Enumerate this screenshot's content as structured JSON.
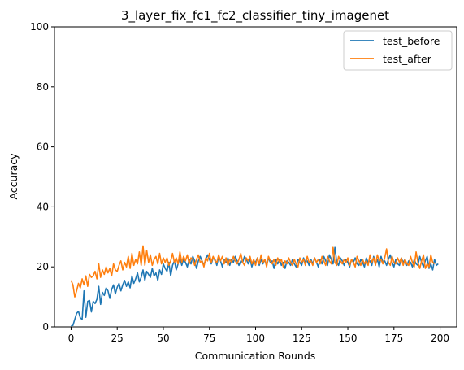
{
  "chart_data": {
    "type": "line",
    "title": "3_layer_fix_fc1_fc2_classifier_tiny_imagenet",
    "xlabel": "Communication Rounds",
    "ylabel": "Accuracy",
    "xlim": [
      -9,
      209
    ],
    "ylim": [
      0,
      100
    ],
    "xticks": [
      "0",
      "25",
      "50",
      "75",
      "100",
      "125",
      "150",
      "175",
      "200"
    ],
    "yticks": [
      "0",
      "20",
      "40",
      "60",
      "80",
      "100"
    ],
    "grid": false,
    "legend_position": "top-right",
    "series": [
      {
        "name": "test_before",
        "color": "#1f77b4",
        "x_start": 0,
        "values": [
          0.3,
          0.5,
          2.5,
          4.5,
          5.2,
          3.0,
          2.5,
          12.0,
          3.2,
          8.5,
          8.8,
          5.0,
          8.5,
          7.8,
          9.2,
          13.5,
          7.5,
          11.5,
          10.5,
          13.0,
          12.0,
          9.5,
          12.5,
          14.0,
          11.0,
          13.2,
          14.5,
          12.0,
          14.0,
          15.5,
          13.5,
          15.0,
          13.0,
          17.0,
          14.5,
          16.0,
          18.0,
          15.0,
          16.5,
          19.0,
          15.5,
          18.5,
          17.5,
          16.5,
          19.5,
          17.0,
          18.0,
          15.5,
          19.0,
          17.5,
          21.0,
          19.5,
          18.5,
          21.5,
          17.0,
          20.5,
          22.0,
          19.0,
          21.0,
          23.0,
          20.5,
          22.5,
          21.5,
          20.0,
          22.5,
          21.0,
          23.5,
          22.0,
          19.5,
          22.0,
          23.5,
          22.0,
          20.5,
          22.5,
          24.0,
          22.5,
          21.0,
          23.0,
          22.5,
          20.5,
          23.5,
          22.0,
          20.0,
          22.5,
          21.5,
          23.0,
          20.5,
          22.5,
          21.5,
          23.5,
          22.0,
          20.5,
          22.0,
          21.5,
          23.5,
          22.5,
          21.0,
          22.5,
          20.0,
          22.0,
          21.5,
          23.0,
          20.5,
          22.5,
          21.0,
          22.5,
          20.5,
          23.0,
          21.5,
          22.0,
          19.5,
          22.5,
          21.0,
          22.5,
          20.5,
          21.5,
          19.5,
          22.0,
          21.5,
          20.5,
          22.5,
          21.0,
          20.0,
          22.5,
          21.5,
          20.5,
          23.0,
          21.5,
          22.0,
          20.5,
          22.5,
          21.0,
          23.0,
          21.5,
          20.0,
          22.5,
          21.0,
          23.5,
          22.0,
          20.5,
          24.0,
          22.5,
          21.0,
          26.5,
          21.5,
          20.5,
          23.0,
          22.0,
          20.5,
          22.5,
          21.5,
          20.0,
          22.5,
          21.5,
          23.0,
          21.0,
          20.5,
          22.5,
          21.5,
          20.0,
          23.0,
          21.5,
          22.0,
          20.5,
          23.5,
          21.0,
          22.5,
          20.0,
          23.5,
          21.5,
          22.0,
          20.5,
          22.5,
          24.0,
          21.5,
          20.0,
          22.5,
          21.0,
          20.5,
          23.0,
          21.5,
          22.5,
          20.5,
          22.0,
          21.5,
          20.0,
          22.5,
          21.0,
          20.5,
          23.5,
          21.5,
          20.0,
          22.0,
          23.5,
          19.5,
          21.0,
          19.0,
          22.5,
          20.5,
          21.0
        ],
        "_comment": ""
      },
      {
        "name": "test_after",
        "color": "#ff7f0e",
        "x_start": 0,
        "values": [
          15.5,
          14.0,
          10.0,
          12.0,
          14.5,
          13.0,
          16.0,
          14.0,
          17.0,
          13.5,
          17.5,
          16.5,
          17.0,
          18.5,
          16.0,
          21.0,
          16.5,
          19.0,
          17.5,
          20.0,
          18.0,
          19.5,
          17.0,
          21.0,
          19.0,
          18.5,
          20.5,
          22.0,
          19.0,
          21.5,
          20.0,
          23.5,
          19.5,
          24.5,
          20.5,
          22.5,
          21.0,
          25.0,
          20.5,
          27.0,
          20.5,
          25.5,
          21.5,
          24.0,
          20.5,
          22.5,
          23.5,
          21.0,
          24.5,
          21.0,
          23.0,
          21.5,
          23.0,
          20.5,
          22.0,
          24.5,
          21.5,
          23.0,
          21.0,
          25.0,
          21.5,
          23.5,
          22.0,
          24.0,
          21.0,
          23.0,
          22.5,
          20.5,
          22.5,
          24.0,
          21.5,
          22.0,
          20.0,
          23.0,
          22.0,
          24.5,
          21.5,
          23.5,
          22.0,
          21.5,
          24.0,
          22.0,
          23.5,
          21.0,
          23.0,
          20.5,
          22.5,
          21.5,
          23.5,
          22.0,
          21.0,
          22.5,
          24.5,
          21.5,
          20.5,
          23.0,
          22.0,
          23.5,
          21.0,
          22.5,
          20.5,
          23.0,
          21.0,
          24.0,
          21.5,
          22.5,
          20.0,
          23.5,
          22.0,
          21.0,
          22.5,
          20.5,
          23.0,
          21.5,
          22.5,
          20.0,
          22.0,
          21.0,
          23.0,
          21.5,
          20.5,
          22.5,
          21.0,
          20.0,
          23.0,
          21.5,
          22.5,
          20.5,
          23.5,
          21.5,
          22.0,
          20.5,
          23.0,
          21.5,
          22.5,
          21.0,
          23.5,
          22.0,
          20.5,
          23.5,
          22.0,
          21.0,
          26.5,
          21.5,
          20.5,
          23.5,
          22.0,
          21.0,
          22.5,
          21.5,
          23.0,
          20.5,
          22.5,
          21.5,
          20.0,
          23.5,
          22.0,
          20.5,
          22.5,
          21.0,
          22.0,
          20.5,
          24.0,
          21.5,
          23.0,
          20.5,
          24.0,
          22.0,
          22.5,
          21.0,
          23.0,
          26.0,
          21.5,
          20.5,
          23.5,
          21.5,
          21.0,
          23.0,
          21.5,
          23.0,
          20.5,
          22.5,
          21.0,
          20.5,
          23.5,
          21.5,
          20.0,
          25.0,
          21.5,
          19.5,
          22.0,
          24.0,
          19.5,
          21.0,
          20.0,
          24.0,
          21.5,
          21.0
        ]
      }
    ]
  }
}
